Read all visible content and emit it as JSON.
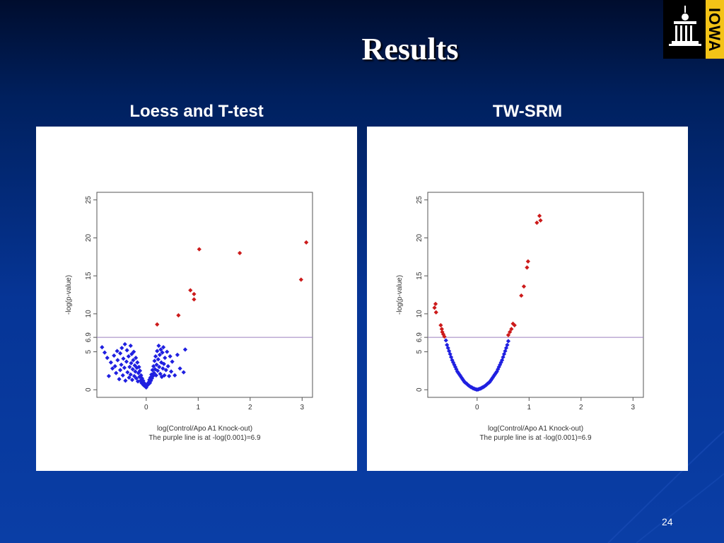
{
  "slide": {
    "title": "Results",
    "page_number": "24",
    "logo_text": "IOWA",
    "colors": {
      "background": "#063596",
      "title": "#ffffff",
      "logo_gold": "#f3c317"
    }
  },
  "chart_data": [
    {
      "type": "scatter",
      "panel_title": "Loess and T-test",
      "xlabel": "log(Control/Apo A1 Knock-out)",
      "caption": "The purple line is at -log(0.001)=6.9",
      "ylabel": "-log(p-value)",
      "xlim": [
        -0.95,
        3.2
      ],
      "ylim": [
        -1,
        26
      ],
      "xticks": [
        "0",
        "1",
        "2",
        "3"
      ],
      "yticks": [
        "0",
        "5",
        "6.9",
        "10",
        "15",
        "20",
        "25"
      ],
      "threshold": 6.9,
      "threshold_color": "#9b7fbf",
      "series": [
        {
          "color": "#1f1fe0",
          "points": [
            [
              -0.85,
              5.6
            ],
            [
              -0.8,
              4.9
            ],
            [
              -0.75,
              4.2
            ],
            [
              -0.72,
              1.8
            ],
            [
              -0.68,
              3.6
            ],
            [
              -0.65,
              2.8
            ],
            [
              -0.62,
              4.5
            ],
            [
              -0.6,
              3.1
            ],
            [
              -0.58,
              2.2
            ],
            [
              -0.56,
              5.1
            ],
            [
              -0.55,
              3.9
            ],
            [
              -0.52,
              1.4
            ],
            [
              -0.5,
              4.8
            ],
            [
              -0.5,
              2.6
            ],
            [
              -0.48,
              3.3
            ],
            [
              -0.47,
              5.5
            ],
            [
              -0.45,
              1.9
            ],
            [
              -0.44,
              4.1
            ],
            [
              -0.42,
              2.9
            ],
            [
              -0.41,
              6.0
            ],
            [
              -0.4,
              1.2
            ],
            [
              -0.38,
              3.7
            ],
            [
              -0.37,
              5.2
            ],
            [
              -0.36,
              2.3
            ],
            [
              -0.34,
              4.4
            ],
            [
              -0.33,
              1.6
            ],
            [
              -0.32,
              3.0
            ],
            [
              -0.3,
              5.8
            ],
            [
              -0.3,
              2.0
            ],
            [
              -0.29,
              3.5
            ],
            [
              -0.28,
              4.7
            ],
            [
              -0.27,
              1.3
            ],
            [
              -0.26,
              2.7
            ],
            [
              -0.25,
              3.9
            ],
            [
              -0.24,
              5.0
            ],
            [
              -0.23,
              1.8
            ],
            [
              -0.22,
              3.2
            ],
            [
              -0.21,
              2.4
            ],
            [
              -0.2,
              4.2
            ],
            [
              -0.19,
              1.5
            ],
            [
              -0.18,
              2.9
            ],
            [
              -0.17,
              3.6
            ],
            [
              -0.16,
              1.1
            ],
            [
              -0.15,
              2.2
            ],
            [
              -0.14,
              3.0
            ],
            [
              -0.13,
              1.7
            ],
            [
              -0.12,
              2.5
            ],
            [
              -0.11,
              1.2
            ],
            [
              -0.1,
              1.9
            ],
            [
              -0.09,
              0.9
            ],
            [
              -0.08,
              1.5
            ],
            [
              -0.07,
              0.8
            ],
            [
              -0.06,
              1.2
            ],
            [
              -0.05,
              0.6
            ],
            [
              -0.04,
              0.9
            ],
            [
              -0.03,
              0.5
            ],
            [
              -0.02,
              0.7
            ],
            [
              -0.01,
              0.4
            ],
            [
              0.0,
              0.3
            ],
            [
              0.01,
              0.5
            ],
            [
              0.02,
              0.6
            ],
            [
              0.03,
              0.8
            ],
            [
              0.04,
              0.7
            ],
            [
              0.05,
              1.0
            ],
            [
              0.06,
              1.3
            ],
            [
              0.07,
              0.9
            ],
            [
              0.08,
              1.6
            ],
            [
              0.09,
              1.2
            ],
            [
              0.1,
              2.0
            ],
            [
              0.11,
              1.5
            ],
            [
              0.12,
              2.6
            ],
            [
              0.13,
              1.8
            ],
            [
              0.14,
              3.1
            ],
            [
              0.15,
              2.2
            ],
            [
              0.16,
              3.8
            ],
            [
              0.17,
              2.7
            ],
            [
              0.18,
              4.4
            ],
            [
              0.19,
              1.9
            ],
            [
              0.2,
              3.3
            ],
            [
              0.21,
              5.1
            ],
            [
              0.22,
              2.5
            ],
            [
              0.23,
              4.0
            ],
            [
              0.24,
              5.8
            ],
            [
              0.25,
              3.0
            ],
            [
              0.26,
              4.6
            ],
            [
              0.27,
              2.1
            ],
            [
              0.28,
              5.3
            ],
            [
              0.29,
              3.6
            ],
            [
              0.3,
              1.7
            ],
            [
              0.31,
              4.9
            ],
            [
              0.32,
              2.8
            ],
            [
              0.33,
              5.6
            ],
            [
              0.34,
              3.4
            ],
            [
              0.35,
              1.9
            ],
            [
              0.36,
              4.2
            ],
            [
              0.38,
              2.6
            ],
            [
              0.4,
              5.0
            ],
            [
              0.42,
              3.1
            ],
            [
              0.44,
              1.8
            ],
            [
              0.46,
              4.4
            ],
            [
              0.48,
              2.4
            ],
            [
              0.5,
              3.7
            ],
            [
              0.55,
              1.9
            ],
            [
              0.6,
              4.6
            ],
            [
              0.65,
              2.8
            ],
            [
              0.72,
              2.3
            ],
            [
              0.75,
              5.3
            ]
          ]
        },
        {
          "color": "#cc1a1a",
          "points": [
            [
              0.21,
              8.6
            ],
            [
              0.62,
              9.8
            ],
            [
              0.85,
              13.1
            ],
            [
              0.92,
              12.6
            ],
            [
              0.92,
              11.9
            ],
            [
              1.02,
              18.5
            ],
            [
              1.8,
              18.0
            ],
            [
              2.98,
              14.5
            ],
            [
              3.08,
              19.4
            ]
          ]
        }
      ]
    },
    {
      "type": "scatter",
      "panel_title": "TW-SRM",
      "xlabel": "log(Control/Apo A1 Knock-out)",
      "caption": "The purple line is at -log(0.001)=6.9",
      "ylabel": "-log(p-value)",
      "xlim": [
        -0.95,
        3.2
      ],
      "ylim": [
        -1,
        26
      ],
      "xticks": [
        "0",
        "1",
        "2",
        "3"
      ],
      "yticks": [
        "0",
        "5",
        "6.9",
        "10",
        "15",
        "20",
        "25"
      ],
      "threshold": 6.9,
      "threshold_color": "#9b7fbf",
      "series": [
        {
          "color": "#1f1fe0",
          "points": [
            [
              -0.6,
              6.5
            ],
            [
              -0.58,
              5.9
            ],
            [
              -0.56,
              5.5
            ],
            [
              -0.54,
              5.1
            ],
            [
              -0.52,
              4.7
            ],
            [
              -0.5,
              4.3
            ],
            [
              -0.48,
              3.9
            ],
            [
              -0.46,
              3.6
            ],
            [
              -0.44,
              3.3
            ],
            [
              -0.42,
              3.0
            ],
            [
              -0.4,
              2.7
            ],
            [
              -0.38,
              2.4
            ],
            [
              -0.36,
              2.2
            ],
            [
              -0.34,
              2.0
            ],
            [
              -0.32,
              1.8
            ],
            [
              -0.3,
              1.6
            ],
            [
              -0.28,
              1.4
            ],
            [
              -0.26,
              1.2
            ],
            [
              -0.24,
              1.0
            ],
            [
              -0.22,
              0.9
            ],
            [
              -0.2,
              0.8
            ],
            [
              -0.18,
              0.65
            ],
            [
              -0.16,
              0.55
            ],
            [
              -0.14,
              0.45
            ],
            [
              -0.12,
              0.35
            ],
            [
              -0.1,
              0.3
            ],
            [
              -0.08,
              0.2
            ],
            [
              -0.06,
              0.15
            ],
            [
              -0.04,
              0.1
            ],
            [
              -0.02,
              0.05
            ],
            [
              0.0,
              0.02
            ],
            [
              0.02,
              0.05
            ],
            [
              0.04,
              0.1
            ],
            [
              0.06,
              0.15
            ],
            [
              0.08,
              0.2
            ],
            [
              0.1,
              0.3
            ],
            [
              0.12,
              0.35
            ],
            [
              0.14,
              0.45
            ],
            [
              0.16,
              0.55
            ],
            [
              0.18,
              0.65
            ],
            [
              0.2,
              0.8
            ],
            [
              0.22,
              0.9
            ],
            [
              0.24,
              1.0
            ],
            [
              0.26,
              1.2
            ],
            [
              0.28,
              1.4
            ],
            [
              0.3,
              1.6
            ],
            [
              0.32,
              1.8
            ],
            [
              0.34,
              2.0
            ],
            [
              0.36,
              2.2
            ],
            [
              0.38,
              2.4
            ],
            [
              0.4,
              2.7
            ],
            [
              0.42,
              3.0
            ],
            [
              0.44,
              3.3
            ],
            [
              0.46,
              3.6
            ],
            [
              0.48,
              3.9
            ],
            [
              0.5,
              4.3
            ],
            [
              0.52,
              4.7
            ],
            [
              0.54,
              5.1
            ],
            [
              0.56,
              5.5
            ],
            [
              0.58,
              5.9
            ],
            [
              0.6,
              6.4
            ]
          ]
        },
        {
          "color": "#cc1a1a",
          "points": [
            [
              -0.82,
              10.8
            ],
            [
              -0.8,
              11.3
            ],
            [
              -0.79,
              10.2
            ],
            [
              -0.7,
              8.5
            ],
            [
              -0.68,
              8.0
            ],
            [
              -0.67,
              7.6
            ],
            [
              -0.65,
              7.3
            ],
            [
              -0.63,
              7.0
            ],
            [
              0.6,
              7.2
            ],
            [
              0.63,
              7.6
            ],
            [
              0.66,
              8.0
            ],
            [
              0.69,
              8.7
            ],
            [
              0.72,
              8.5
            ],
            [
              0.85,
              12.4
            ],
            [
              0.9,
              13.6
            ],
            [
              0.96,
              16.1
            ],
            [
              0.98,
              16.9
            ],
            [
              1.15,
              22.0
            ],
            [
              1.2,
              22.9
            ],
            [
              1.22,
              22.3
            ]
          ]
        }
      ]
    }
  ]
}
